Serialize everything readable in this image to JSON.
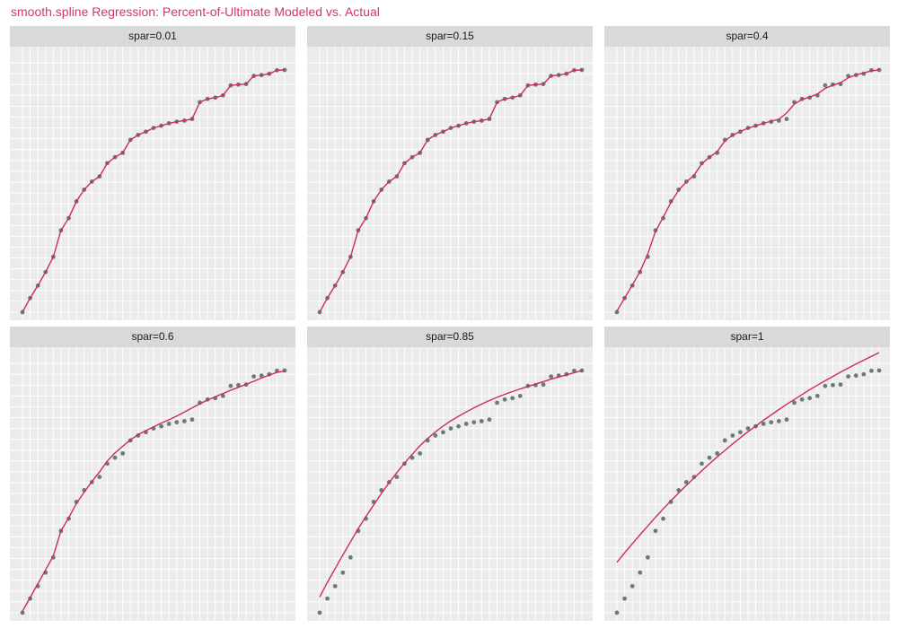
{
  "title": "smooth.spline Regression: Percent-of-Ultimate Modeled vs. Actual",
  "colors": {
    "fitted_line": "#cc2a64",
    "points": "#6b7b78",
    "panel_bg": "#ebebeb",
    "strip_bg": "#d9d9d9",
    "grid": "#ffffff",
    "title": "#d6336c"
  },
  "chart_data": {
    "type": "scatter",
    "facets": [
      {
        "label": "spar=0.01",
        "actual": [
          0.0,
          0.052,
          0.098,
          0.148,
          0.204,
          0.302,
          0.347,
          0.409,
          0.452,
          0.482,
          0.501,
          0.55,
          0.572,
          0.588,
          0.636,
          0.654,
          0.666,
          0.68,
          0.688,
          0.697,
          0.703,
          0.707,
          0.713,
          0.775,
          0.787,
          0.792,
          0.8,
          0.837,
          0.84,
          0.842,
          0.872,
          0.875,
          0.88,
          0.893,
          0.894
        ],
        "fitted": [
          0.0,
          0.052,
          0.098,
          0.148,
          0.204,
          0.302,
          0.347,
          0.409,
          0.452,
          0.482,
          0.501,
          0.55,
          0.572,
          0.588,
          0.636,
          0.654,
          0.666,
          0.68,
          0.688,
          0.697,
          0.703,
          0.707,
          0.713,
          0.775,
          0.787,
          0.792,
          0.8,
          0.837,
          0.84,
          0.842,
          0.872,
          0.875,
          0.88,
          0.893,
          0.894
        ]
      },
      {
        "label": "spar=0.15",
        "actual": [
          0.0,
          0.052,
          0.098,
          0.148,
          0.204,
          0.302,
          0.347,
          0.409,
          0.452,
          0.482,
          0.501,
          0.55,
          0.572,
          0.588,
          0.636,
          0.654,
          0.666,
          0.68,
          0.688,
          0.697,
          0.703,
          0.707,
          0.713,
          0.775,
          0.787,
          0.792,
          0.8,
          0.837,
          0.84,
          0.842,
          0.872,
          0.875,
          0.88,
          0.893,
          0.894
        ],
        "fitted": [
          0.0,
          0.052,
          0.098,
          0.148,
          0.204,
          0.302,
          0.347,
          0.409,
          0.452,
          0.482,
          0.501,
          0.55,
          0.572,
          0.588,
          0.636,
          0.654,
          0.666,
          0.68,
          0.688,
          0.697,
          0.703,
          0.707,
          0.713,
          0.775,
          0.787,
          0.792,
          0.8,
          0.837,
          0.84,
          0.842,
          0.872,
          0.875,
          0.88,
          0.893,
          0.894
        ]
      },
      {
        "label": "spar=0.4",
        "actual": [
          0.0,
          0.052,
          0.098,
          0.148,
          0.204,
          0.302,
          0.347,
          0.409,
          0.452,
          0.482,
          0.501,
          0.55,
          0.572,
          0.588,
          0.636,
          0.654,
          0.666,
          0.68,
          0.688,
          0.697,
          0.703,
          0.707,
          0.713,
          0.775,
          0.787,
          0.792,
          0.8,
          0.837,
          0.84,
          0.842,
          0.872,
          0.875,
          0.88,
          0.893,
          0.894
        ],
        "fitted": [
          0.004,
          0.052,
          0.1,
          0.15,
          0.215,
          0.298,
          0.35,
          0.405,
          0.45,
          0.481,
          0.505,
          0.548,
          0.572,
          0.592,
          0.632,
          0.653,
          0.667,
          0.679,
          0.688,
          0.697,
          0.705,
          0.712,
          0.735,
          0.768,
          0.785,
          0.794,
          0.805,
          0.826,
          0.838,
          0.847,
          0.865,
          0.876,
          0.883,
          0.891,
          0.894
        ]
      },
      {
        "label": "spar=0.6",
        "actual": [
          0.0,
          0.052,
          0.098,
          0.148,
          0.204,
          0.302,
          0.347,
          0.409,
          0.452,
          0.482,
          0.501,
          0.55,
          0.572,
          0.588,
          0.636,
          0.654,
          0.666,
          0.68,
          0.688,
          0.697,
          0.703,
          0.707,
          0.713,
          0.775,
          0.787,
          0.792,
          0.8,
          0.837,
          0.84,
          0.842,
          0.872,
          0.875,
          0.88,
          0.893,
          0.894
        ],
        "fitted": [
          0.005,
          0.056,
          0.107,
          0.158,
          0.21,
          0.302,
          0.35,
          0.403,
          0.445,
          0.484,
          0.52,
          0.56,
          0.59,
          0.614,
          0.638,
          0.657,
          0.672,
          0.686,
          0.7,
          0.712,
          0.726,
          0.741,
          0.756,
          0.771,
          0.785,
          0.797,
          0.809,
          0.821,
          0.832,
          0.843,
          0.854,
          0.866,
          0.877,
          0.887,
          0.892
        ]
      },
      {
        "label": "spar=0.85",
        "actual": [
          0.0,
          0.052,
          0.098,
          0.148,
          0.204,
          0.302,
          0.347,
          0.409,
          0.452,
          0.482,
          0.501,
          0.55,
          0.572,
          0.588,
          0.636,
          0.654,
          0.666,
          0.68,
          0.688,
          0.697,
          0.703,
          0.707,
          0.713,
          0.775,
          0.787,
          0.792,
          0.8,
          0.837,
          0.84,
          0.842,
          0.872,
          0.875,
          0.88,
          0.893,
          0.894
        ],
        "fitted": [
          0.058,
          0.112,
          0.163,
          0.213,
          0.262,
          0.31,
          0.355,
          0.398,
          0.44,
          0.48,
          0.517,
          0.552,
          0.585,
          0.616,
          0.643,
          0.667,
          0.689,
          0.708,
          0.725,
          0.741,
          0.756,
          0.77,
          0.783,
          0.795,
          0.806,
          0.816,
          0.826,
          0.835,
          0.844,
          0.853,
          0.862,
          0.87,
          0.878,
          0.886,
          0.894
        ]
      },
      {
        "label": "spar=1",
        "actual": [
          0.0,
          0.052,
          0.098,
          0.148,
          0.204,
          0.302,
          0.347,
          0.409,
          0.452,
          0.482,
          0.501,
          0.55,
          0.572,
          0.588,
          0.636,
          0.654,
          0.666,
          0.68,
          0.688,
          0.697,
          0.703,
          0.707,
          0.713,
          0.775,
          0.787,
          0.792,
          0.8,
          0.837,
          0.84,
          0.842,
          0.872,
          0.875,
          0.88,
          0.893,
          0.894
        ],
        "fitted": [
          0.186,
          0.221,
          0.255,
          0.288,
          0.32,
          0.352,
          0.383,
          0.413,
          0.442,
          0.47,
          0.497,
          0.524,
          0.55,
          0.575,
          0.599,
          0.623,
          0.646,
          0.668,
          0.689,
          0.71,
          0.73,
          0.75,
          0.769,
          0.787,
          0.805,
          0.823,
          0.84,
          0.856,
          0.872,
          0.888,
          0.903,
          0.918,
          0.932,
          0.946,
          0.96
        ]
      }
    ],
    "ylim": [
      -0.03,
      0.98
    ],
    "xlabel": "",
    "ylabel": "",
    "grid": true,
    "legend": "none"
  }
}
